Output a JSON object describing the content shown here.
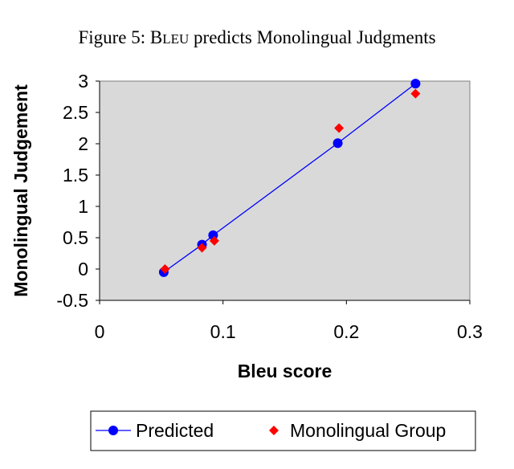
{
  "figure_title": {
    "prefix": "Figure 5: ",
    "smallcaps_B": "B",
    "smallcaps_rest": "LEU",
    "suffix": " predicts Monolingual Judgments"
  },
  "chart_data": {
    "type": "scatter",
    "xlabel": "Bleu score",
    "ylabel": "Monolingual Judgement",
    "xlim": [
      0,
      0.3
    ],
    "ylim": [
      -0.5,
      3
    ],
    "xticks": [
      0,
      0.1,
      0.2,
      0.3
    ],
    "yticks": [
      -0.5,
      0,
      0.5,
      1,
      1.5,
      2,
      2.5,
      3
    ],
    "grid": false,
    "plot_background": "#d9d9d9",
    "legend_position": "bottom",
    "series": [
      {
        "name": "Predicted",
        "marker": "circle",
        "line": true,
        "color": "#0000ff",
        "x": [
          0.052,
          0.083,
          0.092,
          0.193,
          0.256
        ],
        "y": [
          -0.05,
          0.39,
          0.54,
          2.01,
          2.96
        ]
      },
      {
        "name": "Monolingual Group",
        "marker": "diamond",
        "line": false,
        "color": "#ff0000",
        "x": [
          0.053,
          0.083,
          0.093,
          0.194,
          0.256
        ],
        "y": [
          0.0,
          0.34,
          0.45,
          2.25,
          2.8
        ]
      }
    ]
  }
}
